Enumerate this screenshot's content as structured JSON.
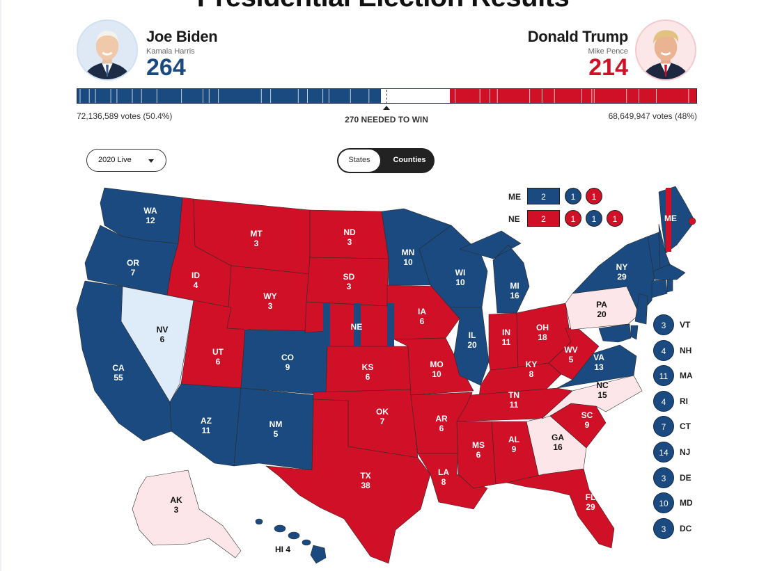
{
  "title": "Presidential Election Results",
  "dem": {
    "name": "Joe Biden",
    "vp": "Kamala Harris",
    "ev": "264",
    "votes": "72,136,589 votes (50.4%)",
    "color": "#1a4a80"
  },
  "rep": {
    "name": "Donald Trump",
    "vp": "Mike Pence",
    "ev": "214",
    "votes": "68,649,947 votes (48%)",
    "color": "#cf1026"
  },
  "needed_to_win": "270 NEEDED TO WIN",
  "year_select": "2020 Live",
  "view_toggle": {
    "states": "States",
    "counties": "Counties",
    "active": "Counties"
  },
  "colors": {
    "dem": "#1a4a80",
    "rep": "#cf1026",
    "lean_dem": "#deebf9",
    "lean_rep": "#fce6e9"
  },
  "split_states": {
    "me": {
      "label": "ME",
      "statewide": "2",
      "districts": [
        "1",
        "1"
      ]
    },
    "ne": {
      "label": "NE",
      "statewide": "2",
      "districts": [
        "1",
        "1",
        "1"
      ]
    }
  },
  "states": {
    "WA": {
      "abbr": "WA",
      "ev": "12",
      "status": "dem"
    },
    "OR": {
      "abbr": "OR",
      "ev": "7",
      "status": "dem"
    },
    "CA": {
      "abbr": "CA",
      "ev": "55",
      "status": "dem"
    },
    "NV": {
      "abbr": "NV",
      "ev": "6",
      "status": "lean_dem"
    },
    "ID": {
      "abbr": "ID",
      "ev": "4",
      "status": "rep"
    },
    "MT": {
      "abbr": "MT",
      "ev": "3",
      "status": "rep"
    },
    "WY": {
      "abbr": "WY",
      "ev": "3",
      "status": "rep"
    },
    "UT": {
      "abbr": "UT",
      "ev": "6",
      "status": "rep"
    },
    "CO": {
      "abbr": "CO",
      "ev": "9",
      "status": "dem"
    },
    "AZ": {
      "abbr": "AZ",
      "ev": "11",
      "status": "dem"
    },
    "NM": {
      "abbr": "NM",
      "ev": "5",
      "status": "dem"
    },
    "ND": {
      "abbr": "ND",
      "ev": "3",
      "status": "rep"
    },
    "SD": {
      "abbr": "SD",
      "ev": "3",
      "status": "rep"
    },
    "NE": {
      "abbr": "NE",
      "ev": "",
      "status": "rep"
    },
    "KS": {
      "abbr": "KS",
      "ev": "6",
      "status": "rep"
    },
    "OK": {
      "abbr": "OK",
      "ev": "7",
      "status": "rep"
    },
    "TX": {
      "abbr": "TX",
      "ev": "38",
      "status": "rep"
    },
    "MN": {
      "abbr": "MN",
      "ev": "10",
      "status": "dem"
    },
    "IA": {
      "abbr": "IA",
      "ev": "6",
      "status": "rep"
    },
    "MO": {
      "abbr": "MO",
      "ev": "10",
      "status": "rep"
    },
    "AR": {
      "abbr": "AR",
      "ev": "6",
      "status": "rep"
    },
    "LA": {
      "abbr": "LA",
      "ev": "8",
      "status": "rep"
    },
    "WI": {
      "abbr": "WI",
      "ev": "10",
      "status": "dem"
    },
    "IL": {
      "abbr": "IL",
      "ev": "20",
      "status": "dem"
    },
    "MI": {
      "abbr": "MI",
      "ev": "16",
      "status": "dem"
    },
    "IN": {
      "abbr": "IN",
      "ev": "11",
      "status": "rep"
    },
    "OH": {
      "abbr": "OH",
      "ev": "18",
      "status": "rep"
    },
    "KY": {
      "abbr": "KY",
      "ev": "8",
      "status": "rep"
    },
    "TN": {
      "abbr": "TN",
      "ev": "11",
      "status": "rep"
    },
    "MS": {
      "abbr": "MS",
      "ev": "6",
      "status": "rep"
    },
    "AL": {
      "abbr": "AL",
      "ev": "9",
      "status": "rep"
    },
    "GA": {
      "abbr": "GA",
      "ev": "16",
      "status": "lean_rep"
    },
    "FL": {
      "abbr": "FL",
      "ev": "29",
      "status": "rep"
    },
    "SC": {
      "abbr": "SC",
      "ev": "9",
      "status": "rep"
    },
    "NC": {
      "abbr": "NC",
      "ev": "15",
      "status": "lean_rep"
    },
    "VA": {
      "abbr": "VA",
      "ev": "13",
      "status": "dem"
    },
    "WV": {
      "abbr": "WV",
      "ev": "5",
      "status": "rep"
    },
    "PA": {
      "abbr": "PA",
      "ev": "20",
      "status": "lean_rep"
    },
    "NY": {
      "abbr": "NY",
      "ev": "29",
      "status": "dem"
    },
    "ME": {
      "abbr": "ME",
      "ev": "",
      "status": "dem"
    },
    "AK": {
      "abbr": "AK",
      "ev": "3",
      "status": "lean_rep"
    },
    "HI": {
      "label": "HI 4",
      "status": "dem"
    }
  },
  "northeast": [
    {
      "abbr": "VT",
      "ev": "3"
    },
    {
      "abbr": "NH",
      "ev": "4"
    },
    {
      "abbr": "MA",
      "ev": "11"
    },
    {
      "abbr": "RI",
      "ev": "4"
    },
    {
      "abbr": "CT",
      "ev": "7"
    },
    {
      "abbr": "NJ",
      "ev": "14"
    },
    {
      "abbr": "DE",
      "ev": "3"
    },
    {
      "abbr": "MD",
      "ev": "10"
    },
    {
      "abbr": "DC",
      "ev": "3"
    }
  ]
}
